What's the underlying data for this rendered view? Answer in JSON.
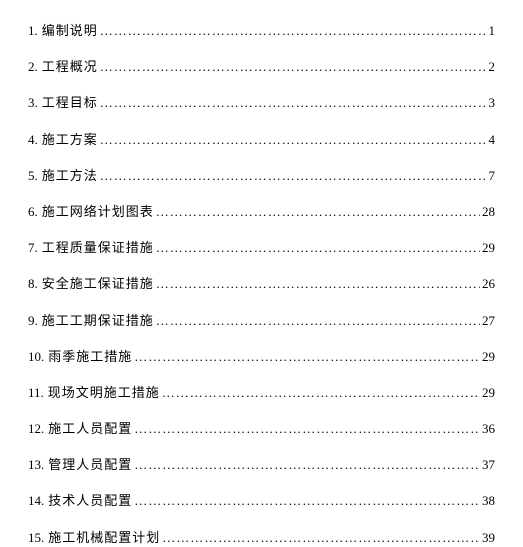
{
  "toc": {
    "font_size": 13,
    "text_color": "#000000",
    "background_color": "#ffffff",
    "row_spacing": 18,
    "entries": [
      {
        "number": "1.",
        "title": "编制说明",
        "page": "1"
      },
      {
        "number": "2.",
        "title": "工程概况",
        "page": "2"
      },
      {
        "number": "3.",
        "title": "工程目标",
        "page": "3"
      },
      {
        "number": "4.",
        "title": "施工方案",
        "page": "4"
      },
      {
        "number": "5.",
        "title": "施工方法",
        "page": "7"
      },
      {
        "number": "6.",
        "title": "施工网络计划图表",
        "page": "28"
      },
      {
        "number": "7.",
        "title": "工程质量保证措施",
        "page": "29"
      },
      {
        "number": "8.",
        "title": "安全施工保证措施",
        "page": "26"
      },
      {
        "number": "9.",
        "title": "施工工期保证措施",
        "page": "27"
      },
      {
        "number": "10.",
        "title": "雨季施工措施",
        "page": "29"
      },
      {
        "number": "11.",
        "title": "现场文明施工措施",
        "page": "29"
      },
      {
        "number": "12.",
        "title": "施工人员配置",
        "page": "36"
      },
      {
        "number": "13.",
        "title": "管理人员配置",
        "page": "37"
      },
      {
        "number": "14.",
        "title": "技术人员配置",
        "page": "38"
      },
      {
        "number": "15.",
        "title": "施工机械配置计划",
        "page": "39"
      }
    ]
  }
}
